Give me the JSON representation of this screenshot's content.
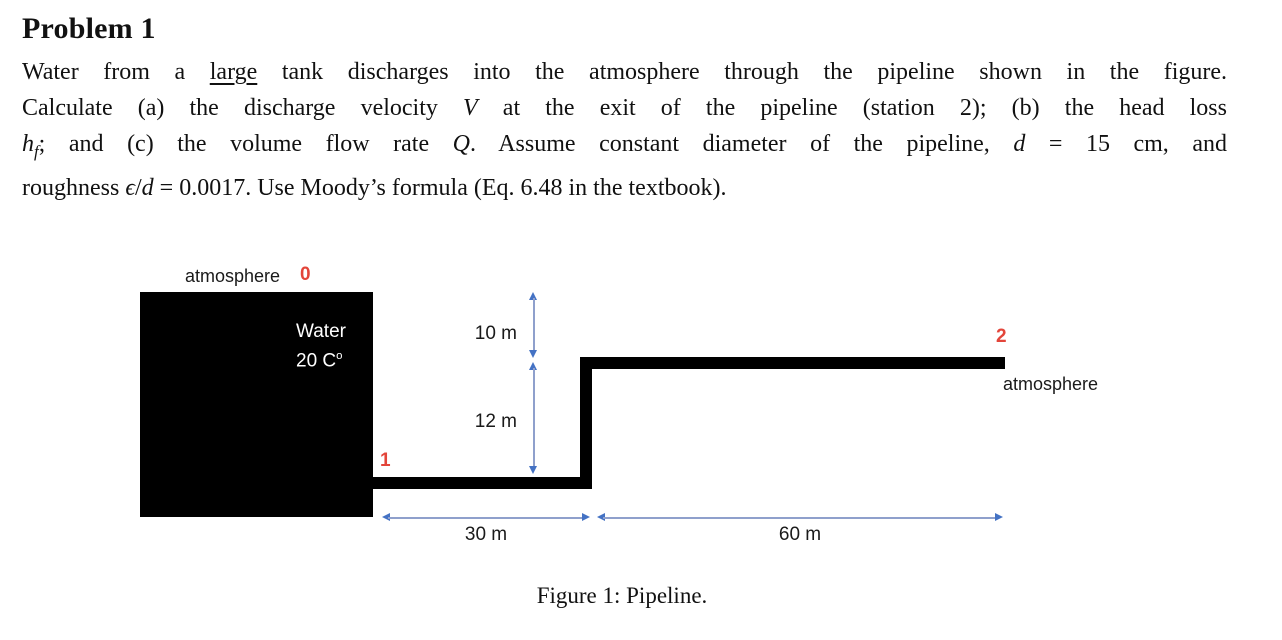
{
  "problem": {
    "title": "Problem 1",
    "lines": [
      "Water from a <u>large</u> tank discharges into the atmosphere through the pipeline shown in the figure.",
      "Calculate (a) the discharge velocity <i>V</i> at the exit of the pipeline (station 2); (b) the head loss",
      "<i>h<sub>f</sub></i>; and (c) the volume flow rate <i>Q</i>. Assume constant diameter of the pipeline, <i>d</i> = 15&nbsp;cm, and",
      "roughness <i>ϵ</i>/<i>d</i> = 0.0017. Use Moody’s formula (Eq. 6.48 in the textbook)."
    ]
  },
  "figure": {
    "caption": "Figure 1: Pipeline.",
    "tank": {
      "atmosphere_label": "atmosphere",
      "water_label": "Water",
      "water_temp_html": "20 C<sup>o</sup>"
    },
    "stations": {
      "station0": "0",
      "station1": "1",
      "station2": "2"
    },
    "exit_atmosphere_label": "atmosphere",
    "dimensions": {
      "height_upper": "10 m",
      "height_lower": "12 m",
      "length_lower": "30 m",
      "length_upper": "60 m"
    },
    "colors": {
      "station-red": "#e3453a",
      "dim-line": "#8fa0cc",
      "dim-head": "#4472c4",
      "pipe-black": "#000000"
    }
  }
}
